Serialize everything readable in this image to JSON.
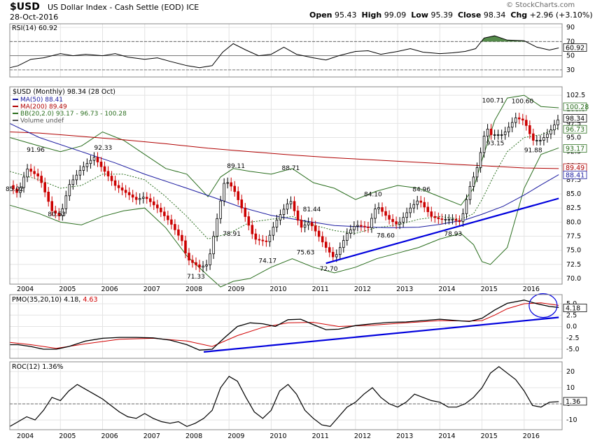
{
  "header": {
    "symbol": "$USD",
    "title": "US Dollar Index - Cash Settle (EOD)",
    "exchange": "ICE",
    "date": "28-Oct-2016",
    "open_label": "Open",
    "open": "95.43",
    "high_label": "High",
    "high": "99.09",
    "low_label": "Low",
    "low": "95.39",
    "close_label": "Close",
    "close": "98.34",
    "chg_label": "Chg",
    "chg": "+2.96 (+3.10%)",
    "watermark": "© StockCharts.com"
  },
  "colors": {
    "price_up": "#000000",
    "price_down": "#cc0000",
    "ma50": "#1a1aa0",
    "ma200": "#b00000",
    "bb": "#2a6e1e",
    "trend": "#0000dd",
    "rsi_fill": "#2a6e1e",
    "rsi_fill_low": "#8a3030"
  },
  "chart_data": [
    {
      "type": "line",
      "panel": "RSI",
      "legend": "RSI(14) 60.92",
      "ylim": [
        20,
        95
      ],
      "y_ticks": [
        "90",
        "70",
        "50",
        "30"
      ],
      "last_value_label": "60.92",
      "x": [
        2003.8,
        2004.0,
        2004.3,
        2004.6,
        2005.0,
        2005.3,
        2005.6,
        2006.0,
        2006.3,
        2006.6,
        2007.0,
        2007.3,
        2007.6,
        2008.0,
        2008.3,
        2008.6,
        2008.85,
        2009.1,
        2009.4,
        2009.7,
        2010.0,
        2010.3,
        2010.6,
        2011.0,
        2011.3,
        2011.6,
        2012.0,
        2012.3,
        2012.6,
        2013.0,
        2013.3,
        2013.6,
        2014.0,
        2014.3,
        2014.6,
        2014.85,
        2015.05,
        2015.3,
        2015.6,
        2016.0,
        2016.3,
        2016.6,
        2016.82
      ],
      "y": [
        33,
        36,
        45,
        47,
        53,
        50,
        52,
        50,
        53,
        48,
        45,
        47,
        42,
        36,
        33,
        36,
        55,
        67,
        58,
        50,
        52,
        62,
        52,
        47,
        44,
        50,
        56,
        57,
        52,
        56,
        60,
        55,
        53,
        54,
        56,
        60,
        75,
        78,
        72,
        71,
        62,
        58,
        61
      ]
    },
    {
      "type": "candlestick",
      "panel": "Price",
      "title": "$USD (Monthly) 98.34 (28 Oct)",
      "legend": [
        "MA(50) 88.41",
        "MA(200) 89.49",
        "BB(20,2.0) 93.17 - 96.73 - 100.28",
        "Volume undef"
      ],
      "ylim": [
        69,
        104
      ],
      "y_ticks": [
        "102.5",
        "100.0",
        "97.5",
        "95.0",
        "92.5",
        "90.0",
        "87.5",
        "85.0",
        "82.5",
        "80.0",
        "77.5",
        "75.0",
        "72.5",
        "70.0"
      ],
      "x_ticks": [
        "2004",
        "2005",
        "2006",
        "2007",
        "2008",
        "2009",
        "2010",
        "2011",
        "2012",
        "2013",
        "2014",
        "2015",
        "2016"
      ],
      "price_path_x": [
        2003.8,
        2004.0,
        2004.2,
        2004.5,
        2004.8,
        2005.0,
        2005.2,
        2005.5,
        2005.8,
        2006.0,
        2006.3,
        2006.5,
        2006.8,
        2007.0,
        2007.3,
        2007.6,
        2007.9,
        2008.0,
        2008.3,
        2008.5,
        2008.7,
        2008.9,
        2009.1,
        2009.3,
        2009.6,
        2009.9,
        2010.1,
        2010.45,
        2010.7,
        2010.9,
        2011.0,
        2011.3,
        2011.5,
        2011.8,
        2012.0,
        2012.3,
        2012.5,
        2012.8,
        2013.0,
        2013.3,
        2013.5,
        2013.8,
        2014.0,
        2014.3,
        2014.5,
        2014.7,
        2014.9,
        2015.1,
        2015.2,
        2015.5,
        2015.8,
        2016.0,
        2016.2,
        2016.4,
        2016.6,
        2016.82
      ],
      "price_path_y": [
        86.5,
        85.0,
        89.5,
        88.0,
        82.0,
        81.0,
        86.5,
        89.5,
        91.5,
        89.5,
        86.5,
        85.5,
        84.0,
        84.5,
        82.5,
        80.0,
        76.5,
        73.5,
        72.0,
        72.5,
        80.0,
        87.5,
        86.0,
        82.5,
        77.0,
        76.5,
        80.0,
        84.0,
        79.0,
        80.0,
        79.0,
        75.5,
        73.5,
        78.0,
        79.5,
        79.0,
        83.0,
        80.5,
        79.5,
        82.5,
        84.0,
        81.0,
        80.5,
        80.5,
        80.0,
        86.0,
        90.0,
        97.0,
        95.5,
        95.5,
        98.5,
        98.0,
        94.5,
        94.5,
        96.0,
        98.34
      ],
      "ma50_x": [
        2003.8,
        2004.5,
        2005.5,
        2006.3,
        2007.0,
        2008.0,
        2008.7,
        2009.3,
        2010.0,
        2010.8,
        2011.5,
        2012.0,
        2012.8,
        2013.5,
        2014.0,
        2014.6,
        2015.0,
        2015.5,
        2016.0,
        2016.4,
        2016.82
      ],
      "ma50_y": [
        97.5,
        95.0,
        92.5,
        90.5,
        88.5,
        86.0,
        84.2,
        82.6,
        81.2,
        80.2,
        79.4,
        79.2,
        79.0,
        79.1,
        79.6,
        80.4,
        81.4,
        82.8,
        84.8,
        86.6,
        88.41
      ],
      "ma200_x": [
        2003.8,
        2004.5,
        2005.5,
        2006.5,
        2007.5,
        2008.5,
        2009.5,
        2010.5,
        2011.5,
        2012.5,
        2013.5,
        2014.5,
        2015.0,
        2015.5,
        2016.0,
        2016.82
      ],
      "ma200_y": [
        96.0,
        95.8,
        95.2,
        94.6,
        93.9,
        93.1,
        92.5,
        91.9,
        91.4,
        91.0,
        90.6,
        90.2,
        90.0,
        89.8,
        89.6,
        89.49
      ],
      "bb_upper_x": [
        2003.8,
        2004.5,
        2005.0,
        2005.5,
        2006.0,
        2006.5,
        2007.0,
        2007.5,
        2008.0,
        2008.5,
        2008.8,
        2009.1,
        2009.5,
        2010.0,
        2010.5,
        2011.0,
        2011.5,
        2012.0,
        2012.5,
        2013.0,
        2013.5,
        2014.0,
        2014.5,
        2014.8,
        2015.0,
        2015.3,
        2015.6,
        2016.0,
        2016.4,
        2016.82
      ],
      "bb_upper_y": [
        95.0,
        93.5,
        92.5,
        93.5,
        96.0,
        94.5,
        92.0,
        89.5,
        88.5,
        84.5,
        88.0,
        89.5,
        89.0,
        88.5,
        89.5,
        87.0,
        86.0,
        84.0,
        85.5,
        86.5,
        86.0,
        84.5,
        83.0,
        86.0,
        91.0,
        98.0,
        102.0,
        102.5,
        100.5,
        100.28
      ],
      "bb_mid_x": [
        2003.8,
        2004.5,
        2005.0,
        2005.5,
        2006.0,
        2006.5,
        2007.0,
        2007.5,
        2008.0,
        2008.5,
        2009.0,
        2009.5,
        2010.0,
        2010.5,
        2011.0,
        2011.5,
        2012.0,
        2012.5,
        2013.0,
        2013.5,
        2014.0,
        2014.5,
        2014.8,
        2015.0,
        2015.3,
        2015.6,
        2016.0,
        2016.4,
        2016.82
      ],
      "bb_mid_y": [
        89.0,
        87.5,
        86.0,
        86.5,
        88.5,
        88.5,
        87.5,
        84.5,
        81.0,
        77.0,
        78.0,
        80.0,
        80.5,
        81.0,
        79.5,
        78.5,
        78.0,
        79.0,
        79.5,
        80.5,
        81.0,
        80.5,
        81.5,
        84.0,
        88.5,
        92.5,
        95.0,
        95.5,
        96.73
      ],
      "bb_lower_x": [
        2003.8,
        2004.5,
        2005.0,
        2005.5,
        2006.0,
        2006.5,
        2007.0,
        2007.5,
        2008.0,
        2008.5,
        2008.8,
        2009.1,
        2009.5,
        2010.0,
        2010.5,
        2011.0,
        2011.5,
        2012.0,
        2012.5,
        2013.0,
        2013.5,
        2014.0,
        2014.5,
        2014.8,
        2015.0,
        2015.2,
        2015.6,
        2016.0,
        2016.4,
        2016.82
      ],
      "bb_lower_y": [
        83.0,
        81.5,
        80.0,
        79.5,
        81.0,
        82.0,
        82.5,
        79.0,
        74.0,
        70.5,
        68.5,
        69.5,
        70.0,
        72.0,
        73.5,
        72.0,
        71.0,
        72.0,
        73.5,
        74.5,
        75.5,
        77.0,
        78.0,
        76.0,
        73.0,
        72.5,
        75.5,
        86.0,
        92.0,
        93.17
      ],
      "last_values": {
        "close": "98.34",
        "bb_mid": "96.73",
        "bb_upper": "100.28",
        "bb_lower": "93.17",
        "ma200": "89.49",
        "ma50": "88.41"
      },
      "annotations": [
        {
          "text": "91.96",
          "x": 2004.4,
          "y": 91.96
        },
        {
          "text": "85.02",
          "x": 2003.9,
          "y": 85.02
        },
        {
          "text": "80.53",
          "x": 2004.9,
          "y": 80.53
        },
        {
          "text": "92.33",
          "x": 2006.0,
          "y": 92.33
        },
        {
          "text": "71.33",
          "x": 2008.2,
          "y": 71.33
        },
        {
          "text": "89.11",
          "x": 2009.15,
          "y": 89.11
        },
        {
          "text": "78.91",
          "x": 2009.05,
          "y": 78.91
        },
        {
          "text": "74.17",
          "x": 2009.9,
          "y": 74.17
        },
        {
          "text": "88.71",
          "x": 2010.45,
          "y": 88.71
        },
        {
          "text": "81.44",
          "x": 2010.95,
          "y": 81.44
        },
        {
          "text": "75.63",
          "x": 2010.8,
          "y": 75.63
        },
        {
          "text": "72.70",
          "x": 2011.35,
          "y": 72.7
        },
        {
          "text": "84.10",
          "x": 2012.4,
          "y": 84.1
        },
        {
          "text": "78.60",
          "x": 2012.7,
          "y": 78.6
        },
        {
          "text": "84.96",
          "x": 2013.55,
          "y": 84.96
        },
        {
          "text": "78.93",
          "x": 2014.3,
          "y": 78.93
        },
        {
          "text": "100.71",
          "x": 2015.2,
          "y": 100.71
        },
        {
          "text": "93.15",
          "x": 2015.3,
          "y": 93.15
        },
        {
          "text": "100.60",
          "x": 2015.9,
          "y": 100.6
        },
        {
          "text": "91.88",
          "x": 2016.2,
          "y": 91.88
        }
      ],
      "trendline": {
        "x": [
          2011.3,
          2016.82
        ],
        "y": [
          72.7,
          84.2
        ]
      }
    },
    {
      "type": "line",
      "panel": "PMO",
      "legend_label": "PMO(35,20,10)",
      "legend_value": "4.18",
      "signal_value": "4.63",
      "ylim": [
        -7,
        7
      ],
      "y_ticks": [
        "5.0",
        "2.5",
        "0.0",
        "-2.5",
        "-5.0"
      ],
      "last_value_label": "4.18",
      "x": [
        2003.8,
        2004.0,
        2004.3,
        2004.6,
        2004.9,
        2005.2,
        2005.6,
        2006.0,
        2006.4,
        2006.8,
        2007.2,
        2007.6,
        2008.0,
        2008.3,
        2008.6,
        2008.9,
        2009.2,
        2009.5,
        2009.8,
        2010.1,
        2010.4,
        2010.7,
        2011.0,
        2011.3,
        2011.6,
        2012.0,
        2012.4,
        2012.8,
        2013.2,
        2013.6,
        2014.0,
        2014.4,
        2014.7,
        2015.0,
        2015.3,
        2015.6,
        2016.0,
        2016.3,
        2016.6,
        2016.82
      ],
      "y": [
        -4.0,
        -4.0,
        -4.4,
        -5.0,
        -5.0,
        -4.4,
        -3.2,
        -2.6,
        -2.4,
        -2.4,
        -2.5,
        -3.0,
        -4.0,
        -5.2,
        -5.0,
        -2.4,
        0.0,
        0.8,
        0.6,
        0.0,
        1.5,
        1.6,
        0.4,
        -0.7,
        -0.6,
        0.2,
        0.6,
        0.9,
        1.0,
        1.3,
        1.6,
        1.3,
        1.1,
        1.8,
        3.6,
        5.1,
        5.8,
        5.0,
        4.4,
        4.18
      ],
      "signal_x": [
        2003.8,
        2004.3,
        2004.9,
        2005.6,
        2006.4,
        2007.2,
        2008.0,
        2008.6,
        2009.2,
        2009.8,
        2010.4,
        2011.0,
        2011.6,
        2012.4,
        2013.2,
        2014.0,
        2014.7,
        2015.0,
        2015.3,
        2015.6,
        2016.0,
        2016.4,
        2016.82
      ],
      "signal_y": [
        -3.5,
        -4.0,
        -4.8,
        -3.8,
        -2.8,
        -2.6,
        -3.2,
        -4.4,
        -2.0,
        -0.2,
        0.8,
        0.9,
        0.0,
        0.3,
        0.8,
        1.3,
        1.2,
        1.3,
        2.5,
        3.9,
        5.0,
        5.2,
        4.63
      ],
      "trendline": {
        "x": [
          2008.4,
          2016.82
        ],
        "y": [
          -5.6,
          2.0
        ]
      }
    },
    {
      "type": "line",
      "panel": "ROC",
      "legend": "ROC(12) 1.36%",
      "ylim": [
        -16,
        26
      ],
      "y_ticks": [
        "20",
        "10",
        "0",
        "-10"
      ],
      "last_value_label": "1.36",
      "x": [
        2003.8,
        2004.0,
        2004.2,
        2004.4,
        2004.6,
        2004.8,
        2005.0,
        2005.2,
        2005.4,
        2005.6,
        2005.8,
        2006.0,
        2006.2,
        2006.4,
        2006.6,
        2006.8,
        2007.0,
        2007.2,
        2007.4,
        2007.6,
        2007.8,
        2008.0,
        2008.2,
        2008.4,
        2008.6,
        2008.8,
        2009.0,
        2009.2,
        2009.4,
        2009.6,
        2009.8,
        2010.0,
        2010.2,
        2010.4,
        2010.6,
        2010.8,
        2011.0,
        2011.2,
        2011.4,
        2011.6,
        2011.8,
        2012.0,
        2012.2,
        2012.4,
        2012.6,
        2012.8,
        2013.0,
        2013.2,
        2013.4,
        2013.6,
        2013.8,
        2014.0,
        2014.2,
        2014.4,
        2014.6,
        2014.8,
        2015.0,
        2015.2,
        2015.4,
        2015.6,
        2015.8,
        2016.0,
        2016.2,
        2016.4,
        2016.6,
        2016.82
      ],
      "y": [
        -14,
        -11,
        -8,
        -10,
        -4,
        4,
        2,
        8,
        12,
        9,
        6,
        3,
        -1,
        -5,
        -8,
        -9,
        -6,
        -9,
        -11,
        -12,
        -11,
        -14,
        -12,
        -9,
        -4,
        10,
        17,
        14,
        4,
        -5,
        -9,
        -4,
        8,
        12,
        6,
        -4,
        -9,
        -13,
        -14,
        -8,
        -2,
        1,
        6,
        10,
        4,
        0,
        -2,
        1,
        6,
        4,
        2,
        1,
        -2,
        -2,
        0,
        4,
        10,
        19,
        23,
        19,
        15,
        8,
        -1,
        -2,
        1,
        1.36
      ]
    }
  ]
}
